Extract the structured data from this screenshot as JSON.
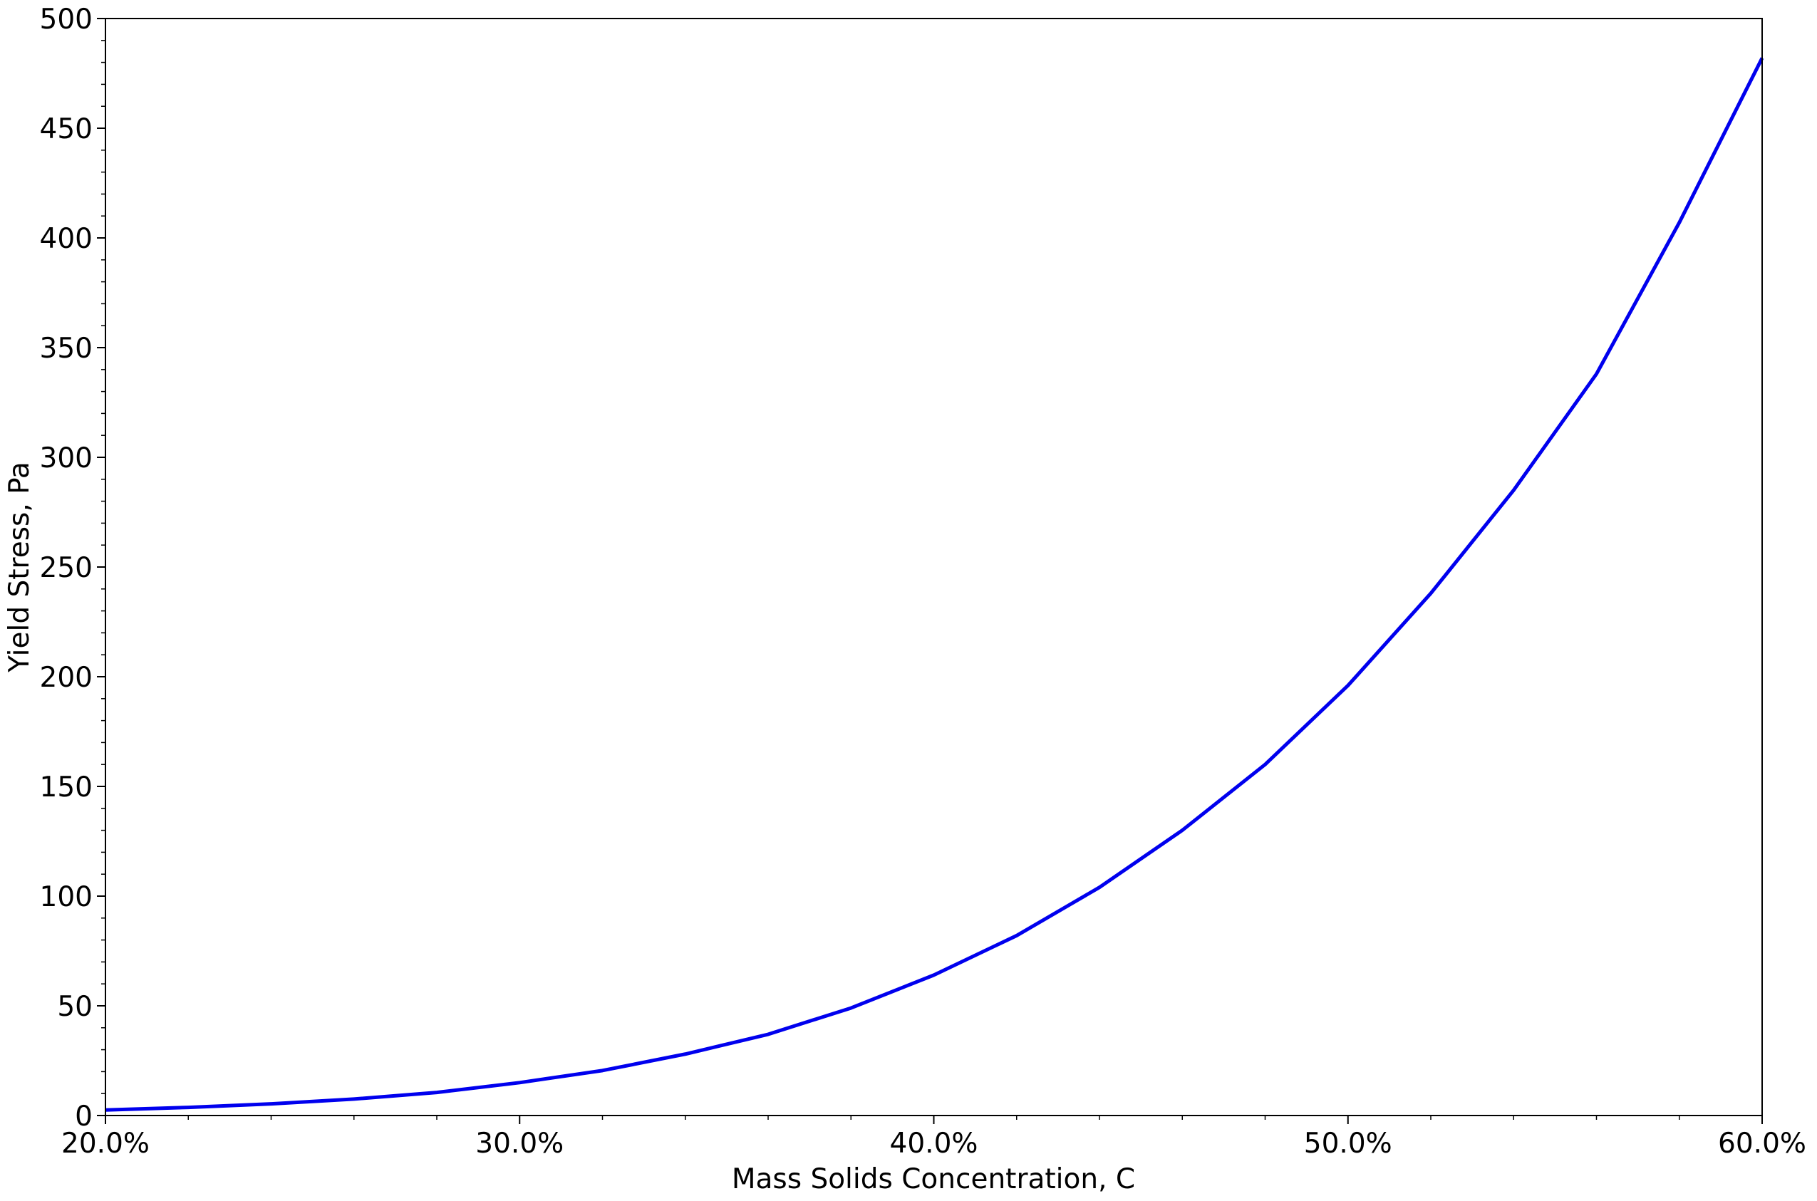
{
  "chart_data": {
    "type": "line",
    "xlabel": "Mass Solids Concentration, C",
    "ylabel": "Yield Stress, Pa",
    "x": [
      20,
      22,
      24,
      26,
      28,
      30,
      32,
      34,
      36,
      38,
      40,
      42,
      44,
      46,
      48,
      50,
      52,
      54,
      56,
      58,
      60
    ],
    "series": [
      {
        "name": "Yield Stress",
        "color": "#0000ee",
        "values": [
          2.5,
          3.7,
          5.3,
          7.5,
          10.5,
          15,
          20.5,
          28,
          37,
          49,
          64,
          82,
          104,
          130,
          160,
          196,
          238,
          285,
          338,
          407,
          482
        ]
      }
    ],
    "xlim": [
      20,
      60
    ],
    "xticks": [
      {
        "value": 20,
        "label": "20.0%"
      },
      {
        "value": 30,
        "label": "30.0%"
      },
      {
        "value": 40,
        "label": "40.0%"
      },
      {
        "value": 50,
        "label": "50.0%"
      },
      {
        "value": 60,
        "label": "60.0%"
      }
    ],
    "xticks_minor": [
      22,
      24,
      26,
      28,
      32,
      34,
      36,
      38,
      42,
      44,
      46,
      48,
      52,
      54,
      56,
      58
    ],
    "ylim": [
      0,
      500
    ],
    "yticks": [
      0,
      50,
      100,
      150,
      200,
      250,
      300,
      350,
      400,
      450,
      500
    ],
    "yticks_minor": [
      10,
      20,
      30,
      40,
      60,
      70,
      80,
      90,
      110,
      120,
      130,
      140,
      160,
      170,
      180,
      190,
      210,
      220,
      230,
      240,
      260,
      270,
      280,
      290,
      310,
      320,
      330,
      340,
      360,
      370,
      380,
      390,
      410,
      420,
      430,
      440,
      460,
      470,
      480,
      490
    ],
    "grid": false
  }
}
